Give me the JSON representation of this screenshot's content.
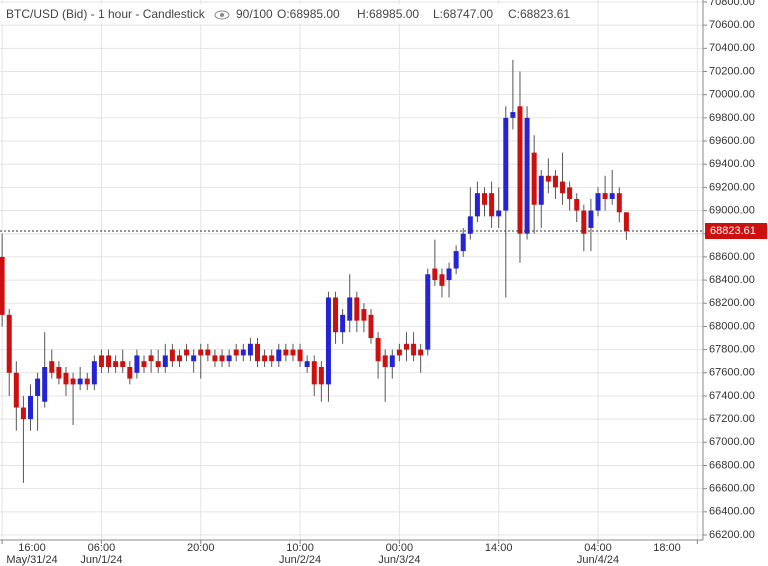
{
  "chart_data": {
    "type": "candlestick",
    "title": "BTC/USD (Bid) - 1 hour - Candlestick",
    "counter": "90/100",
    "ohlc_labels": [
      "O:68985.00",
      "H:68985.00",
      "L:68747.00",
      "C:68823.61"
    ],
    "categories": [
      null,
      null,
      null,
      null,
      null,
      null,
      null,
      null,
      null,
      null,
      null,
      null,
      null,
      null,
      null,
      null,
      null,
      null,
      null,
      null,
      null,
      null,
      null,
      null,
      null,
      null,
      null,
      null,
      null,
      null,
      null,
      null,
      null,
      null,
      null,
      null,
      null,
      null,
      null,
      null,
      null,
      null,
      null,
      null,
      null,
      null,
      null,
      null,
      null,
      null,
      null,
      null,
      null,
      null,
      null,
      null,
      null,
      null,
      null,
      null,
      null,
      null,
      null,
      null,
      null,
      null,
      null,
      null,
      null,
      null,
      null,
      null,
      null,
      null,
      null,
      null,
      null,
      null,
      null,
      null,
      null,
      null,
      null,
      null,
      null,
      null,
      null,
      null,
      null
    ],
    "open": [
      68600,
      68100,
      67600,
      67300,
      67200,
      67400,
      67350,
      67700,
      67650,
      67600,
      67550,
      67500,
      67550,
      67500,
      67750,
      67750,
      67700,
      67700,
      67650,
      67600,
      67700,
      67750,
      67700,
      67650,
      67800,
      67750,
      67800,
      67700,
      67800,
      67800,
      67750,
      67750,
      67700,
      67800,
      67750,
      67750,
      67850,
      67750,
      67750,
      67700,
      67800,
      67800,
      67800,
      67650,
      67700,
      67650,
      67500,
      68250,
      67950,
      68050,
      68250,
      68150,
      68100,
      67900,
      67750,
      67650,
      67800,
      67850,
      67850,
      67800,
      67800,
      68500,
      68450,
      68400,
      68500,
      68650,
      68800,
      68950,
      69150,
      69150,
      68950,
      69000,
      69800,
      69900,
      68800,
      69500,
      69050,
      69300,
      69300,
      69250,
      69200,
      69100,
      69000,
      68850,
      69000,
      69150,
      69100,
      69150,
      68985
    ],
    "high": [
      68800,
      68150,
      67700,
      67400,
      67500,
      67600,
      67950,
      67800,
      67700,
      67650,
      67600,
      67650,
      67600,
      67750,
      67800,
      67800,
      67750,
      67800,
      67700,
      67800,
      67750,
      67800,
      67800,
      67850,
      67850,
      67800,
      67850,
      67800,
      67850,
      67850,
      67800,
      67800,
      67800,
      67850,
      67850,
      67900,
      67900,
      67800,
      67800,
      67850,
      67850,
      67850,
      67850,
      67750,
      67750,
      67700,
      68300,
      68300,
      68150,
      68450,
      68300,
      68200,
      68150,
      67950,
      67800,
      67800,
      67850,
      67950,
      67950,
      67850,
      68500,
      68750,
      68500,
      68550,
      68700,
      68850,
      69200,
      69250,
      69200,
      69250,
      69200,
      69900,
      70300,
      70200,
      69900,
      69650,
      69350,
      69450,
      69350,
      69500,
      69250,
      69150,
      69050,
      69100,
      69200,
      69300,
      69350,
      69200,
      68985
    ],
    "low": [
      68000,
      67400,
      67100,
      66650,
      67100,
      67100,
      67300,
      67550,
      67500,
      67400,
      67150,
      67450,
      67450,
      67450,
      67600,
      67600,
      67600,
      67600,
      67500,
      67550,
      67600,
      67600,
      67600,
      67600,
      67650,
      67650,
      67700,
      67600,
      67550,
      67700,
      67650,
      67650,
      67650,
      67700,
      67700,
      67700,
      67650,
      67650,
      67650,
      67650,
      67700,
      67700,
      67650,
      67600,
      67400,
      67350,
      67350,
      67850,
      67850,
      67950,
      67950,
      67950,
      67850,
      67550,
      67350,
      67550,
      67700,
      67700,
      67700,
      67600,
      67750,
      68350,
      68250,
      68250,
      68450,
      68600,
      68750,
      68900,
      68950,
      68850,
      68850,
      68250,
      69700,
      68550,
      68750,
      68800,
      68850,
      69150,
      69100,
      69050,
      69000,
      68900,
      68650,
      68650,
      68950,
      69000,
      69050,
      68900,
      68747
    ],
    "close": [
      68100,
      67600,
      67300,
      67200,
      67400,
      67550,
      67650,
      67600,
      67550,
      67500,
      67500,
      67550,
      67500,
      67700,
      67650,
      67650,
      67650,
      67650,
      67550,
      67750,
      67650,
      67700,
      67650,
      67750,
      67700,
      67700,
      67750,
      67750,
      67750,
      67750,
      67700,
      67700,
      67750,
      67750,
      67800,
      67850,
      67700,
      67700,
      67700,
      67800,
      67750,
      67750,
      67700,
      67700,
      67500,
      67500,
      68250,
      67950,
      68100,
      68250,
      68050,
      68050,
      67900,
      67700,
      67650,
      67750,
      67750,
      67800,
      67750,
      67750,
      68450,
      68400,
      68350,
      68500,
      68650,
      68800,
      68950,
      69150,
      69050,
      68950,
      69000,
      69800,
      69850,
      68800,
      69800,
      69050,
      69300,
      69250,
      69200,
      69150,
      69100,
      69000,
      68800,
      69000,
      69150,
      69100,
      69150,
      68985,
      68823.61
    ],
    "up_color": "#2424d4",
    "down_color": "#cc1010",
    "last_price": 68823.61,
    "last_price_label": "68823.61",
    "last_price_color": "#cc1010",
    "xlim": [
      -0.3,
      98.8
    ],
    "xticks": [
      {
        "value": 0,
        "label": "16:00"
      },
      {
        "value": 14,
        "label": "06:00"
      },
      {
        "value": 28,
        "label": "20:00"
      },
      {
        "value": 42,
        "label": "10:00"
      },
      {
        "value": 56,
        "label": "00:00"
      },
      {
        "value": 70,
        "label": "14:00"
      },
      {
        "value": 84,
        "label": "04:00"
      },
      {
        "value": 98,
        "label": "18:00"
      }
    ],
    "xtick_dates": [
      "May/31/24",
      "Jun/1/24",
      null,
      "Jun/2/24",
      "Jun/3/24",
      null,
      "Jun/4/24",
      null
    ],
    "ylim": [
      66157,
      70817
    ],
    "yticks": [
      {
        "value": 66200,
        "label": "66200.00"
      },
      {
        "value": 66400,
        "label": "66400.00"
      },
      {
        "value": 66600,
        "label": "66600.00"
      },
      {
        "value": 66800,
        "label": "66800.00"
      },
      {
        "value": 67000,
        "label": "67000.00"
      },
      {
        "value": 67200,
        "label": "67200.00"
      },
      {
        "value": 67400,
        "label": "67400.00"
      },
      {
        "value": 67600,
        "label": "67600.00"
      },
      {
        "value": 67800,
        "label": "67800.00"
      },
      {
        "value": 68000,
        "label": "68000.00"
      },
      {
        "value": 68200,
        "label": "68200.00"
      },
      {
        "value": 68400,
        "label": "68400.00"
      },
      {
        "value": 68600,
        "label": "68600.00"
      },
      {
        "value": 68800,
        "label": "68800.00"
      },
      {
        "value": 69000,
        "label": "69000.00"
      },
      {
        "value": 69200,
        "label": "69200.00"
      },
      {
        "value": 69400,
        "label": "69400.00"
      },
      {
        "value": 69600,
        "label": "69600.00"
      },
      {
        "value": 69800,
        "label": "69800.00"
      },
      {
        "value": 70000,
        "label": "70000.00"
      },
      {
        "value": 70200,
        "label": "70200.00"
      },
      {
        "value": 70400,
        "label": "70400.00"
      },
      {
        "value": 70600,
        "label": "70600.00"
      },
      {
        "value": 70800,
        "label": "70800.00"
      }
    ],
    "grid": true
  }
}
